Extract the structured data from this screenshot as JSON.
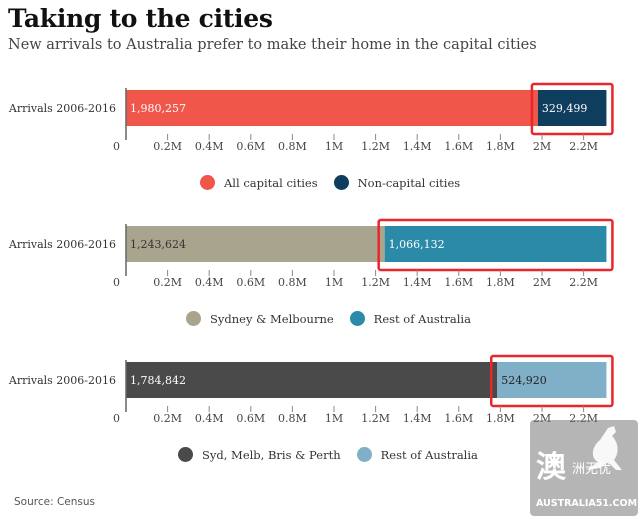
{
  "header": {
    "title": "Taking to the cities",
    "subtitle": "New arrivals to Australia prefer to make their home in the capital cities"
  },
  "source": "Source: Census",
  "watermark": {
    "glyph": "澳",
    "sub": "洲无忧",
    "url": "AUSTRALIA51.COM"
  },
  "chart_data": [
    {
      "type": "bar",
      "stacked": true,
      "orientation": "horizontal",
      "categories": [
        "Arrivals 2006-2016"
      ],
      "series": [
        {
          "name": "All capital cities",
          "values": [
            1980257
          ],
          "label": "1,980,257",
          "color": "#f0564a"
        },
        {
          "name": "Non-capital cities",
          "values": [
            329499
          ],
          "label": "329,499",
          "color": "#0f3d5e"
        }
      ],
      "xticks": [
        "0",
        "0.2M",
        "0.4M",
        "0.6M",
        "0.8M",
        "1M",
        "1.2M",
        "1.4M",
        "1.6M",
        "1.8M",
        "2M",
        "2.2M"
      ],
      "xtick_values": [
        0,
        200000,
        400000,
        600000,
        800000,
        1000000,
        1200000,
        1400000,
        1600000,
        1800000,
        2000000,
        2200000
      ],
      "xlim": [
        0,
        2310000
      ],
      "legend_position": "bottom",
      "highlight_color": "#e8262b"
    },
    {
      "type": "bar",
      "stacked": true,
      "orientation": "horizontal",
      "categories": [
        "Arrivals 2006-2016"
      ],
      "series": [
        {
          "name": "Sydney & Melbourne",
          "values": [
            1243624
          ],
          "label": "1,243,624",
          "color": "#a8a48e"
        },
        {
          "name": "Rest of Australia",
          "values": [
            1066132
          ],
          "label": "1,066,132",
          "color": "#2a8aa8"
        }
      ],
      "xticks": [
        "0",
        "0.2M",
        "0.4M",
        "0.6M",
        "0.8M",
        "1M",
        "1.2M",
        "1.4M",
        "1.6M",
        "1.8M",
        "2M",
        "2.2M"
      ],
      "xtick_values": [
        0,
        200000,
        400000,
        600000,
        800000,
        1000000,
        1200000,
        1400000,
        1600000,
        1800000,
        2000000,
        2200000
      ],
      "xlim": [
        0,
        2310000
      ],
      "legend_position": "bottom",
      "highlight_color": "#e8262b"
    },
    {
      "type": "bar",
      "stacked": true,
      "orientation": "horizontal",
      "categories": [
        "Arrivals 2006-2016"
      ],
      "series": [
        {
          "name": "Syd, Melb, Bris & Perth",
          "values": [
            1784842
          ],
          "label": "1,784,842",
          "color": "#4a4a4a"
        },
        {
          "name": "Rest of Australia",
          "values": [
            524920
          ],
          "label": "524,920",
          "color": "#7fb0c8"
        }
      ],
      "xticks": [
        "0",
        "0.2M",
        "0.4M",
        "0.6M",
        "0.8M",
        "1M",
        "1.2M",
        "1.4M",
        "1.6M",
        "1.8M",
        "2M",
        "2.2M"
      ],
      "xtick_values": [
        0,
        200000,
        400000,
        600000,
        800000,
        1000000,
        1200000,
        1400000,
        1600000,
        1800000,
        2000000,
        2200000
      ],
      "xlim": [
        0,
        2310000
      ],
      "legend_position": "bottom",
      "highlight_color": "#e8262b"
    }
  ]
}
